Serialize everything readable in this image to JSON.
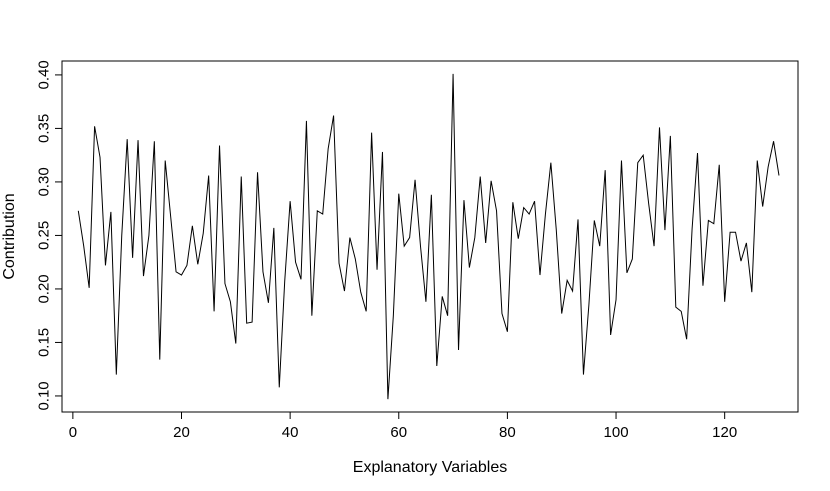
{
  "chart_data": {
    "type": "line",
    "title": "",
    "xlabel": "Explanatory Variables",
    "ylabel": "Contribution",
    "xlim": [
      -2,
      133.5
    ],
    "ylim": [
      0.085,
      0.413
    ],
    "xticks": [
      0,
      20,
      40,
      60,
      80,
      100,
      120
    ],
    "yticks": [
      0.1,
      0.15,
      0.2,
      0.25,
      0.3,
      0.35,
      0.4
    ],
    "ytick_labels": [
      "0.10",
      "0.15",
      "0.20",
      "0.25",
      "0.30",
      "0.35",
      "0.40"
    ],
    "grid": false,
    "legend": "none",
    "line_color": "#000000",
    "series": [
      {
        "x": [
          1,
          2,
          3,
          4,
          5,
          6,
          7,
          8,
          9,
          10,
          11,
          12,
          13,
          14,
          15,
          16,
          17,
          18,
          19,
          20,
          21,
          22,
          23,
          24,
          25,
          26,
          27,
          28,
          29,
          30,
          31,
          32,
          33,
          34,
          35,
          36,
          37,
          38,
          39,
          40,
          41,
          42,
          43,
          44,
          45,
          46,
          47,
          48,
          49,
          50,
          51,
          52,
          53,
          54,
          55,
          56,
          57,
          58,
          59,
          60,
          61,
          62,
          63,
          64,
          65,
          66,
          67,
          68,
          69,
          70,
          71,
          72,
          73,
          74,
          75,
          76,
          77,
          78,
          79,
          80,
          81,
          82,
          83,
          84,
          85,
          86,
          87,
          88,
          89,
          90,
          91,
          92,
          93,
          94,
          95,
          96,
          97,
          98,
          99,
          100,
          101,
          102,
          103,
          104,
          105,
          106,
          107,
          108,
          109,
          110,
          111,
          112,
          113,
          114,
          115,
          116,
          117,
          118,
          119,
          120,
          121,
          122,
          123,
          124,
          125,
          126,
          127,
          128,
          129,
          130
        ],
        "values": [
          0.273,
          0.24,
          0.201,
          0.352,
          0.323,
          0.222,
          0.272,
          0.12,
          0.25,
          0.34,
          0.229,
          0.339,
          0.212,
          0.25,
          0.338,
          0.134,
          0.32,
          0.268,
          0.216,
          0.213,
          0.222,
          0.259,
          0.223,
          0.252,
          0.306,
          0.179,
          0.334,
          0.205,
          0.188,
          0.149,
          0.305,
          0.168,
          0.169,
          0.309,
          0.216,
          0.187,
          0.257,
          0.108,
          0.207,
          0.282,
          0.225,
          0.209,
          0.357,
          0.175,
          0.273,
          0.27,
          0.331,
          0.362,
          0.224,
          0.198,
          0.248,
          0.228,
          0.197,
          0.179,
          0.346,
          0.218,
          0.328,
          0.097,
          0.175,
          0.289,
          0.24,
          0.248,
          0.302,
          0.24,
          0.188,
          0.288,
          0.128,
          0.193,
          0.175,
          0.401,
          0.143,
          0.283,
          0.22,
          0.248,
          0.305,
          0.243,
          0.301,
          0.273,
          0.177,
          0.16,
          0.281,
          0.247,
          0.276,
          0.27,
          0.282,
          0.213,
          0.27,
          0.318,
          0.255,
          0.177,
          0.208,
          0.198,
          0.265,
          0.12,
          0.185,
          0.264,
          0.24,
          0.311,
          0.157,
          0.19,
          0.32,
          0.215,
          0.228,
          0.318,
          0.325,
          0.28,
          0.24,
          0.351,
          0.255,
          0.343,
          0.183,
          0.179,
          0.153,
          0.256,
          0.327,
          0.203,
          0.264,
          0.261,
          0.316,
          0.188,
          0.253,
          0.253,
          0.226,
          0.243,
          0.197,
          0.32,
          0.277,
          0.314,
          0.338,
          0.306
        ]
      }
    ]
  }
}
